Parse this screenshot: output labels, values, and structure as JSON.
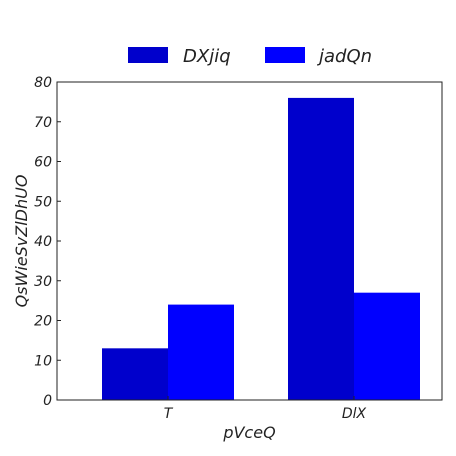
{
  "chart_data": {
    "type": "bar",
    "title": "",
    "xlabel": "pVceQ",
    "ylabel": "QsWieSvZlDhUO",
    "categories": [
      "T",
      "DlX"
    ],
    "series": [
      {
        "name": "DXjiq",
        "color": "#0000cc",
        "values": [
          13,
          76
        ]
      },
      {
        "name": "jadQn",
        "color": "#0000ff",
        "values": [
          24,
          27
        ]
      }
    ],
    "ylim": [
      0,
      80
    ],
    "yticks": [
      0,
      10,
      20,
      30,
      40,
      50,
      60,
      70,
      80
    ],
    "grid": false,
    "legend_position": "top-center"
  }
}
